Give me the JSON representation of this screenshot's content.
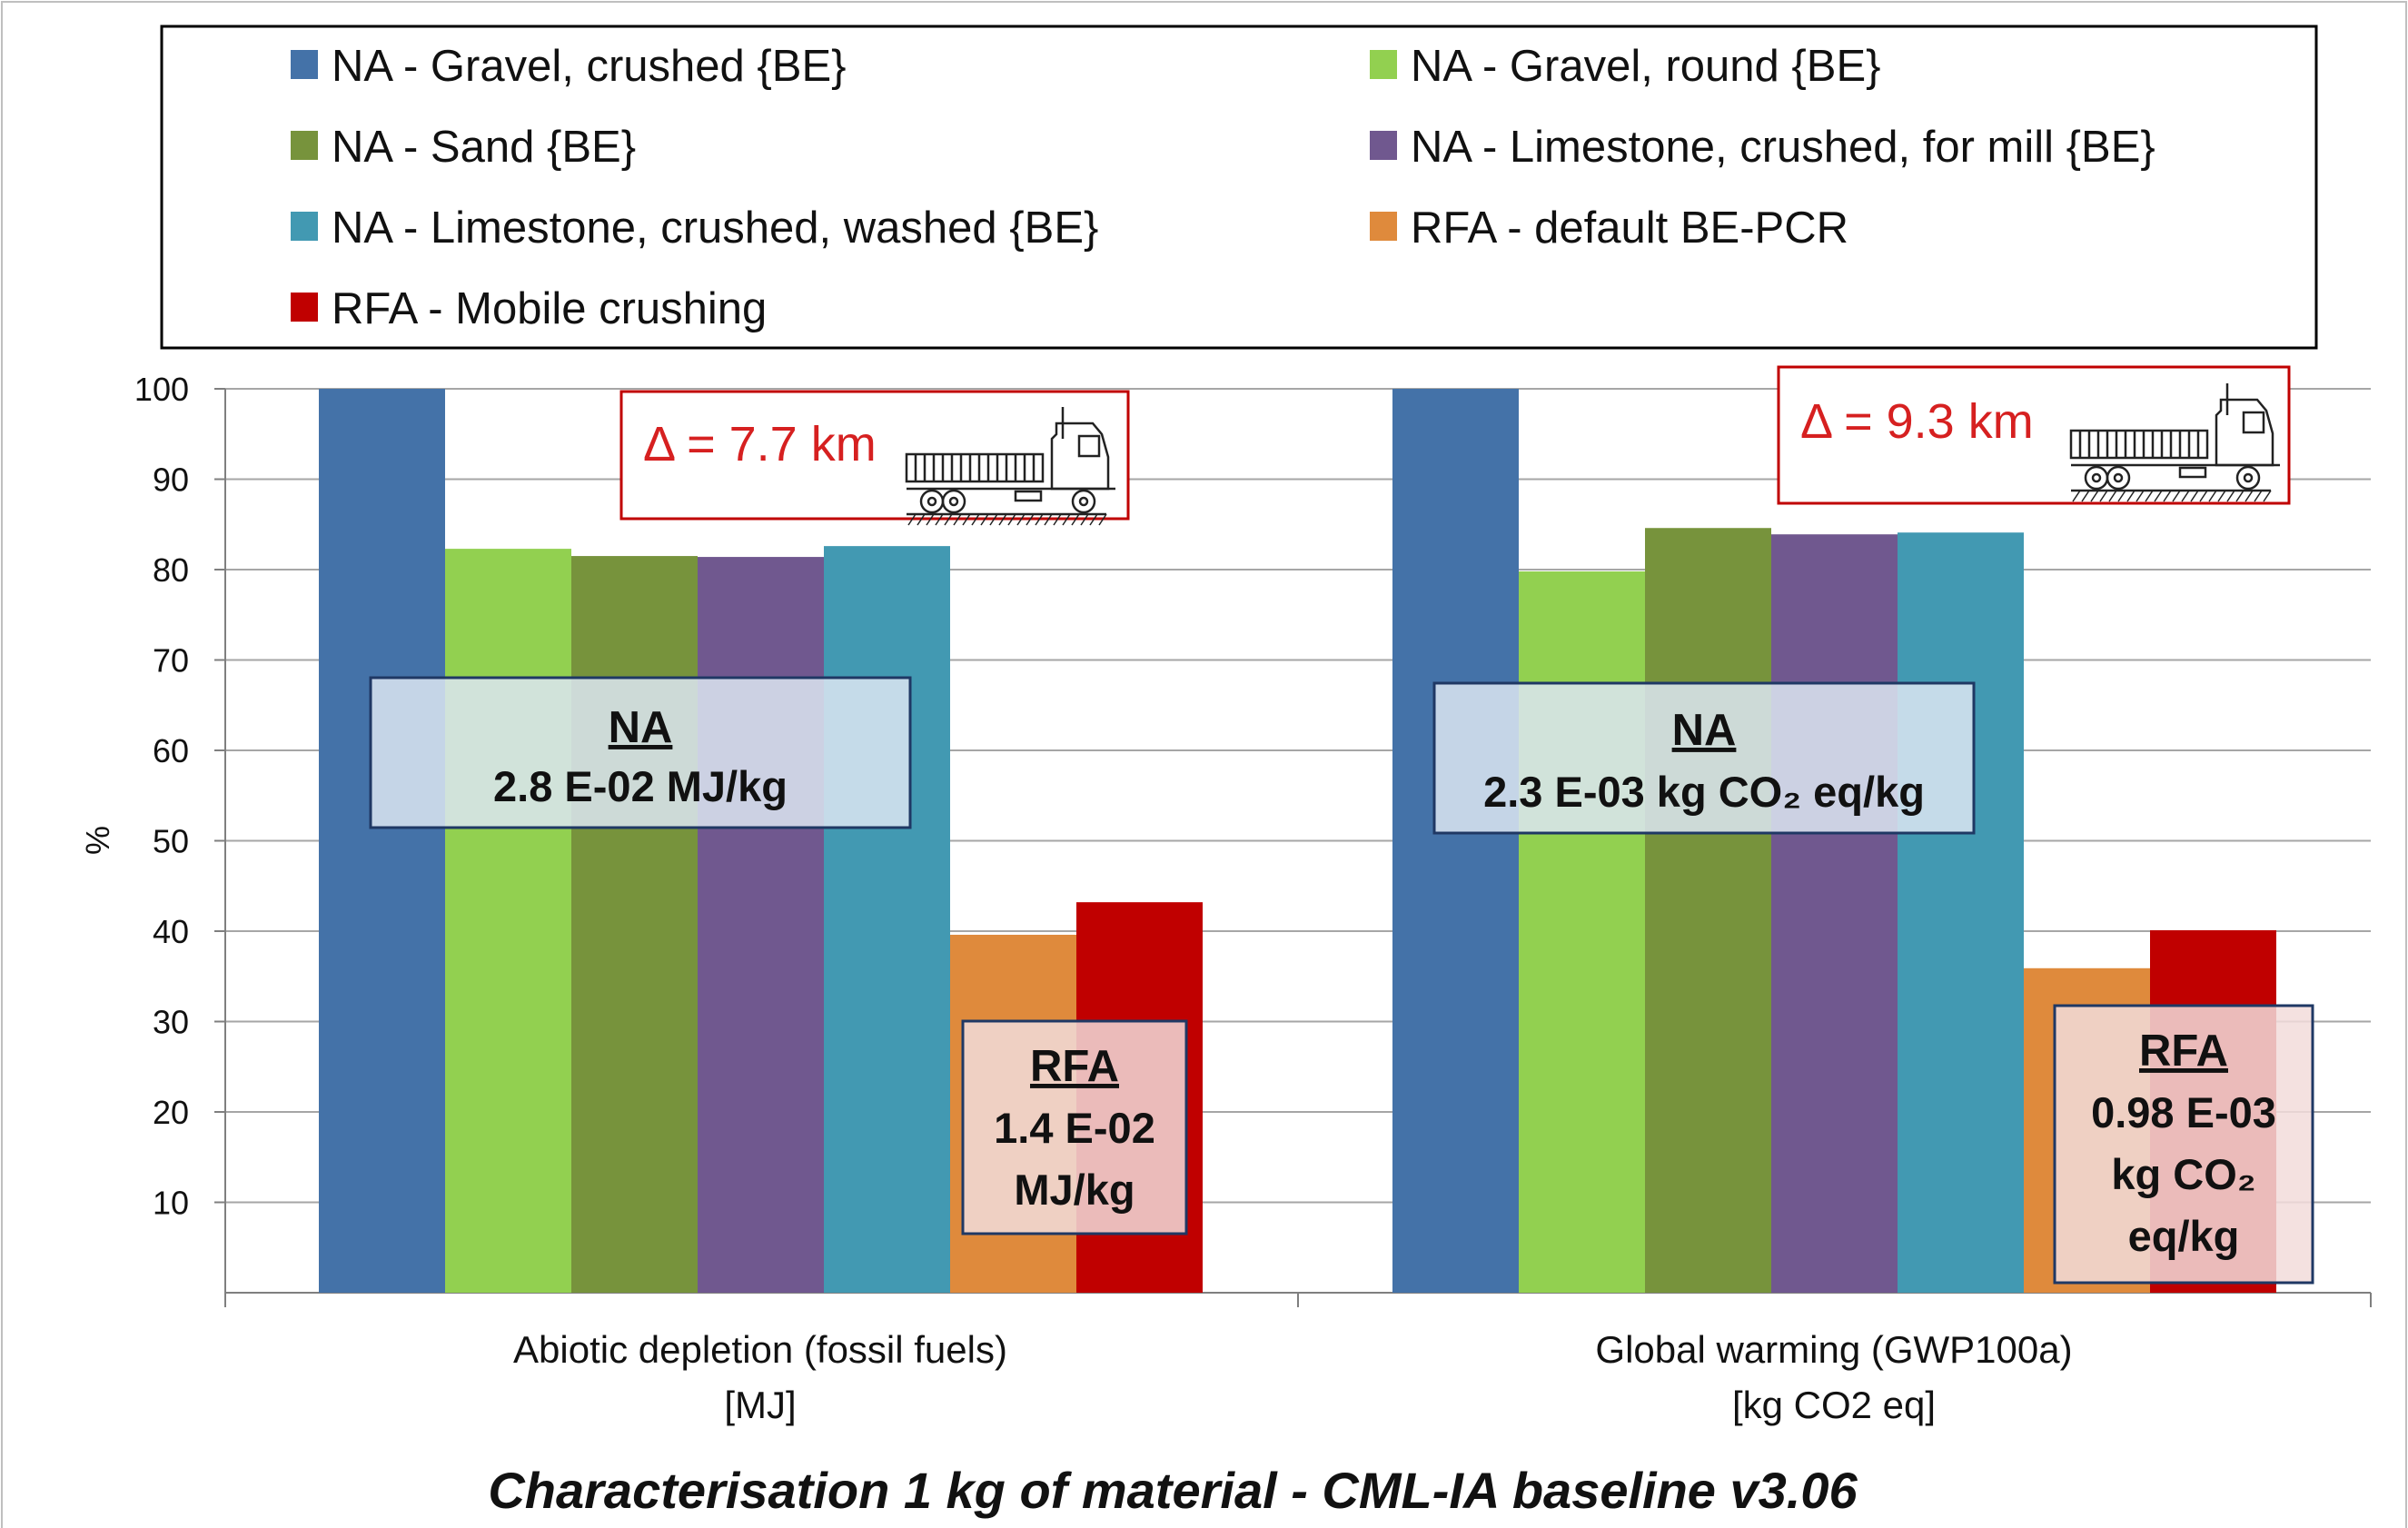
{
  "chart_data": {
    "type": "bar",
    "title": "Characterisation 1 kg of material - CML-IA baseline v3.06",
    "ylabel": "%",
    "ylim": [
      0,
      100
    ],
    "yticks": [
      "10",
      "20",
      "30",
      "40",
      "50",
      "60",
      "70",
      "80",
      "90",
      "100"
    ],
    "grid": true,
    "legend_position": "top",
    "categories": [
      {
        "line1": "Abiotic depletion (fossil fuels)",
        "line2": "[MJ]"
      },
      {
        "line1": "Global warming (GWP100a)",
        "line2": "[kg CO2 eq]"
      }
    ],
    "series": [
      {
        "name": "NA - Gravel, crushed {BE}",
        "color": "#4472a8",
        "values": [
          100,
          100
        ]
      },
      {
        "name": "NA - Gravel, round {BE}",
        "color": "#92d050",
        "values": [
          82.3,
          79.8
        ]
      },
      {
        "name": "NA - Sand {BE}",
        "color": "#77933c",
        "values": [
          81.5,
          84.6
        ]
      },
      {
        "name": "NA - Limestone, crushed, for mill {BE}",
        "color": "#70588f",
        "values": [
          81.4,
          83.9
        ]
      },
      {
        "name": "NA - Limestone, crushed, washed {BE}",
        "color": "#4299b2",
        "values": [
          82.6,
          84.1
        ]
      },
      {
        "name": "RFA -  default BE-PCR",
        "color": "#df8a3c",
        "values": [
          39.6,
          35.9
        ]
      },
      {
        "name": "RFA - Mobile crushing",
        "color": "#c00000",
        "values": [
          43.2,
          40.1
        ]
      }
    ],
    "annotations": [
      {
        "id": "na1",
        "title": "NA",
        "lines": [
          "2.8 E-02 MJ/kg"
        ]
      },
      {
        "id": "rfa1",
        "title": "RFA",
        "lines": [
          "1.4 E-02",
          "MJ/kg"
        ]
      },
      {
        "id": "delta1",
        "text": "Δ = 7.7 km",
        "icon": "truck-icon"
      },
      {
        "id": "na2",
        "title": "NA",
        "lines": [
          "2.3 E-03 kg CO₂ eq/kg"
        ]
      },
      {
        "id": "rfa2",
        "title": "RFA",
        "lines": [
          "0.98 E-03",
          "kg CO₂",
          "eq/kg"
        ]
      },
      {
        "id": "delta2",
        "text": "Δ = 9.3 km",
        "icon": "truck-icon"
      }
    ]
  }
}
